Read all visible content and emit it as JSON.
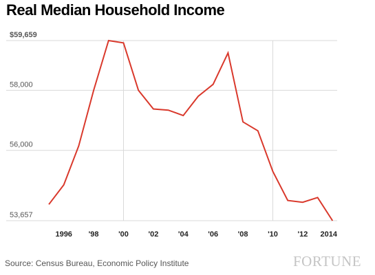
{
  "chart_data": {
    "type": "line",
    "title": "Real Median Household Income",
    "source": "Source: Census Bureau, Economic Policy Institute",
    "xlabel": "",
    "ylabel": "",
    "ylim": [
      53657,
      59659
    ],
    "xlim": [
      1994.5,
      2014
    ],
    "grid": true,
    "y_ticks": [
      {
        "value": 59659,
        "label": "$59,659"
      },
      {
        "value": 58000,
        "label": "58,000"
      },
      {
        "value": 56000,
        "label": "56,000"
      },
      {
        "value": 53657,
        "label": "53,657"
      }
    ],
    "x_ticks": [
      {
        "value": 1996,
        "label": "1996"
      },
      {
        "value": 1998,
        "label": "'98"
      },
      {
        "value": 2000,
        "label": "'00"
      },
      {
        "value": 2002,
        "label": "'02"
      },
      {
        "value": 2004,
        "label": "'04"
      },
      {
        "value": 2006,
        "label": "'06"
      },
      {
        "value": 2008,
        "label": "'08"
      },
      {
        "value": 2010,
        "label": "'10"
      },
      {
        "value": 2012,
        "label": "'12"
      },
      {
        "value": 2014,
        "label": "2014"
      }
    ],
    "x_gridlines": [
      2000,
      2010
    ],
    "series": [
      {
        "color": "#d9382b",
        "x": [
          1995,
          1996,
          1997,
          1998,
          1999,
          2000,
          2001,
          2002,
          2003,
          2004,
          2005,
          2006,
          2007,
          2008,
          2009,
          2010,
          2011,
          2012,
          2013,
          2014
        ],
        "y": [
          54200,
          54850,
          56150,
          58000,
          59659,
          59580,
          58000,
          57380,
          57340,
          57160,
          57800,
          58200,
          59250,
          56950,
          56650,
          55300,
          54330,
          54270,
          54430,
          53657
        ]
      }
    ]
  },
  "brand": "FORTUNE"
}
